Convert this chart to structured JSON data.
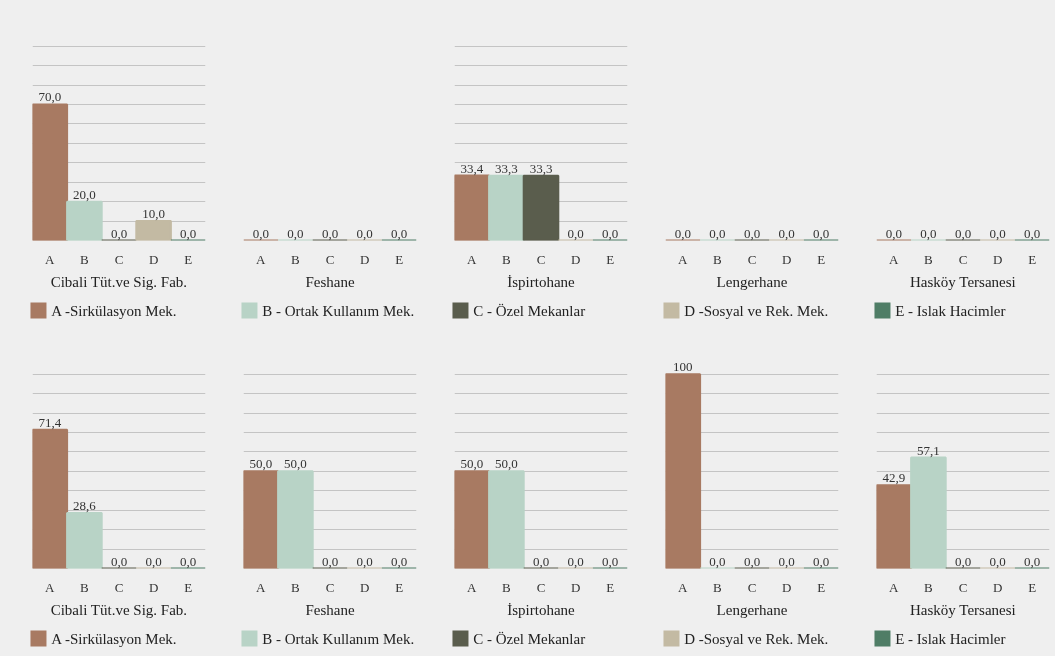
{
  "chart_data": [
    {
      "type": "bar",
      "xlabel": "Cibali Tüt.ve Sig. Fab.",
      "categories": [
        "A",
        "B",
        "C",
        "D",
        "E"
      ],
      "values": [
        70.0,
        20.0,
        0.0,
        10.0,
        0.0
      ],
      "value_labels": [
        "70,0",
        "20,0",
        "0,0",
        "10,0",
        "0,0"
      ],
      "colors": [
        "#a87a62",
        "#b8d3c6",
        "#5a5d4d",
        "#c3baa3",
        "#4f7d66"
      ],
      "grid": "y",
      "tick_labels": "x"
    },
    {
      "type": "other",
      "xlabel": "Feshane",
      "categories": [
        "A",
        "B",
        "C",
        "D",
        "E"
      ],
      "values": [
        0.0,
        0.0,
        0.0,
        0.0,
        0.0
      ],
      "value_labels": [
        "0,0",
        "0,0",
        "0,0",
        "0,0",
        "0,0"
      ],
      "colors": [
        "#a87a62",
        "#b8d3c6",
        "#5a5d4d",
        "#c3baa3",
        "#4f7d66"
      ]
    },
    {
      "type": "bar",
      "xlabel": "İspirtohane",
      "categories": [
        "A",
        "B",
        "C",
        "D",
        "E"
      ],
      "values": [
        33.4,
        33.3,
        33.3,
        0.0,
        0.0
      ],
      "value_labels": [
        "33,4",
        "33,3",
        "33,3",
        "0,0",
        "0,0"
      ],
      "colors": [
        "#a87a62",
        "#b8d3c6",
        "#5a5d4d",
        "#c3baa3",
        "#4f7d66"
      ],
      "grid": "y",
      "tick_labels": "x"
    },
    {
      "type": "other",
      "xlabel": "Lengerhane",
      "categories": [
        "A",
        "B",
        "C",
        "D",
        "E"
      ],
      "values": [
        0.0,
        0.0,
        0.0,
        0.0,
        0.0
      ],
      "value_labels": [
        "0,0",
        "0,0",
        "0,0",
        "0,0",
        "0,0"
      ],
      "colors": [
        "#a87a62",
        "#b8d3c6",
        "#5a5d4d",
        "#c3baa3",
        "#4f7d66"
      ]
    },
    {
      "type": "other",
      "xlabel": "Hasköy Tersanesi",
      "categories": [
        "A",
        "B",
        "C",
        "D",
        "E"
      ],
      "values": [
        0.0,
        0.0,
        0.0,
        0.0,
        0.0
      ],
      "value_labels": [
        "0,0",
        "0,0",
        "0,0",
        "0,0",
        "0,0"
      ],
      "colors": [
        "#a87a62",
        "#b8d3c6",
        "#5a5d4d",
        "#c3baa3",
        "#4f7d66"
      ]
    },
    {
      "type": "other",
      "categories": [
        "A -Sirkülasyon Mek.",
        "B - Ortak Kullanım Mek.",
        "C - Özel Mekanlar",
        "D -Sosyal ve Rek. Mek.",
        "E - Islak Hacimler"
      ],
      "colors": [
        "#a87a62",
        "#b8d3c6",
        "#5a5d4d",
        "#c3baa3",
        "#4f7d66"
      ]
    },
    {
      "type": "bar",
      "xlabel": "Cibali Tüt.ve Sig. Fab.",
      "categories": [
        "A",
        "B",
        "C",
        "D",
        "E"
      ],
      "values": [
        71.4,
        28.6,
        0.0,
        0.0,
        0.0
      ],
      "value_labels": [
        "71,4",
        "28,6",
        "0,0",
        "0,0",
        "0,0"
      ],
      "colors": [
        "#a87a62",
        "#b8d3c6",
        "#5a5d4d",
        "#c3baa3",
        "#4f7d66"
      ],
      "grid": "y",
      "tick_labels": "x"
    },
    {
      "type": "bar",
      "xlabel": "Feshane",
      "categories": [
        "A",
        "B",
        "C",
        "D",
        "E"
      ],
      "values": [
        50.0,
        50.0,
        0.0,
        0.0,
        0.0
      ],
      "value_labels": [
        "50,0",
        "50,0",
        "0,0",
        "0,0",
        "0,0"
      ],
      "colors": [
        "#a87a62",
        "#b8d3c6",
        "#5a5d4d",
        "#c3baa3",
        "#4f7d66"
      ],
      "grid": "y",
      "tick_labels": "x"
    },
    {
      "type": "bar",
      "xlabel": "İspirtohane",
      "categories": [
        "A",
        "B",
        "C",
        "D",
        "E"
      ],
      "values": [
        50.0,
        50.0,
        0.0,
        0.0,
        0.0
      ],
      "value_labels": [
        "50,0",
        "50,0",
        "0,0",
        "0,0",
        "0,0"
      ],
      "colors": [
        "#a87a62",
        "#b8d3c6",
        "#5a5d4d",
        "#c3baa3",
        "#4f7d66"
      ],
      "grid": "y",
      "tick_labels": "x"
    },
    {
      "type": "bar",
      "xlabel": "Lengerhane",
      "categories": [
        "A",
        "B",
        "C",
        "D",
        "E"
      ],
      "values": [
        100,
        0.0,
        0.0,
        0.0,
        0.0
      ],
      "value_labels": [
        "100",
        "0,0",
        "0,0",
        "0,0",
        "0,0"
      ],
      "colors": [
        "#a87a62",
        "#b8d3c6",
        "#5a5d4d",
        "#c3baa3",
        "#4f7d66"
      ],
      "grid": "y",
      "tick_labels": "x"
    },
    {
      "type": "bar",
      "xlabel": "Hasköy Tersanesi",
      "categories": [
        "A",
        "B",
        "C",
        "D",
        "E"
      ],
      "values": [
        42.9,
        57.1,
        0.0,
        0.0,
        0.0
      ],
      "value_labels": [
        "42,9",
        "57,1",
        "0,0",
        "0,0",
        "0,0"
      ],
      "colors": [
        "#a87a62",
        "#b8d3c6",
        "#5a5d4d",
        "#c3baa3",
        "#4f7d66"
      ],
      "grid": "y",
      "tick_labels": "x"
    },
    {
      "type": "other",
      "categories": [
        "A -Sirkülasyon Mek.",
        "B - Ortak Kullanım Mek.",
        "C - Özel Mekanlar",
        "D -Sosyal ve Rek. Mek.",
        "E - Islak Hacimler"
      ],
      "colors": [
        "#a87a62",
        "#b8d3c6",
        "#5a5d4d",
        "#c3baa3",
        "#4f7d66"
      ]
    }
  ]
}
